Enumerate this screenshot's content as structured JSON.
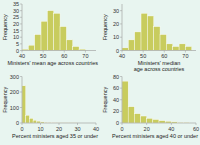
{
  "chart_data": [
    {
      "type": "histogram",
      "x_label": "Ministers' mean age across countries",
      "y_label": "Frequency",
      "bins": [
        40,
        43,
        46,
        49,
        52,
        55,
        58,
        61,
        64,
        67,
        70,
        73
      ],
      "values": [
        1,
        4,
        12,
        22,
        30,
        28,
        18,
        8,
        3,
        1,
        0
      ],
      "color": "#c8cc5e",
      "xlim": [
        40,
        75
      ],
      "ylim": [
        0,
        35
      ],
      "xticks": [
        40,
        50,
        60,
        70
      ],
      "yticks": [
        0,
        5,
        10,
        15,
        20,
        25,
        30,
        35
      ]
    },
    {
      "type": "histogram",
      "x_label": "Ministers' median age across countries",
      "y_label": "Frequency",
      "bins": [
        40,
        43,
        46,
        49,
        52,
        55,
        58,
        61,
        64,
        67,
        70,
        73
      ],
      "values": [
        2,
        8,
        14,
        28,
        26,
        18,
        12,
        5,
        3,
        5,
        3
      ],
      "color": "#c8cc5e",
      "xlim": [
        40,
        75
      ],
      "ylim": [
        0,
        35
      ],
      "xticks": [
        40,
        50,
        60,
        70
      ],
      "yticks": [
        0,
        10,
        20,
        30
      ]
    },
    {
      "type": "histogram",
      "x_label": "Percent ministers aged 35 or under",
      "y_label": "Frequency",
      "bins": [
        0,
        2,
        4,
        6,
        8,
        10,
        12,
        14,
        16,
        18,
        20,
        25,
        30,
        35,
        40
      ],
      "values": [
        240,
        50,
        30,
        18,
        12,
        7,
        4,
        3,
        2,
        1,
        1,
        1,
        0,
        0
      ],
      "color": "#c8cc5e",
      "xlim": [
        0,
        40
      ],
      "ylim": [
        0,
        300
      ],
      "xticks": [
        0,
        10,
        20,
        30,
        40
      ],
      "yticks": [
        0,
        100,
        200,
        300
      ]
    },
    {
      "type": "histogram",
      "x_label": "Percent ministers aged 40 or under",
      "y_label": "Frequency",
      "bins": [
        0,
        5,
        10,
        15,
        20,
        25,
        30,
        35,
        40,
        45,
        50,
        55,
        60
      ],
      "values": [
        72,
        28,
        16,
        12,
        8,
        6,
        4,
        3,
        2,
        1,
        1,
        0
      ],
      "color": "#c8cc5e",
      "xlim": [
        0,
        60
      ],
      "ylim": [
        0,
        80
      ],
      "xticks": [
        0,
        20,
        40,
        60
      ],
      "yticks": [
        0,
        20,
        40,
        60,
        80
      ]
    }
  ]
}
